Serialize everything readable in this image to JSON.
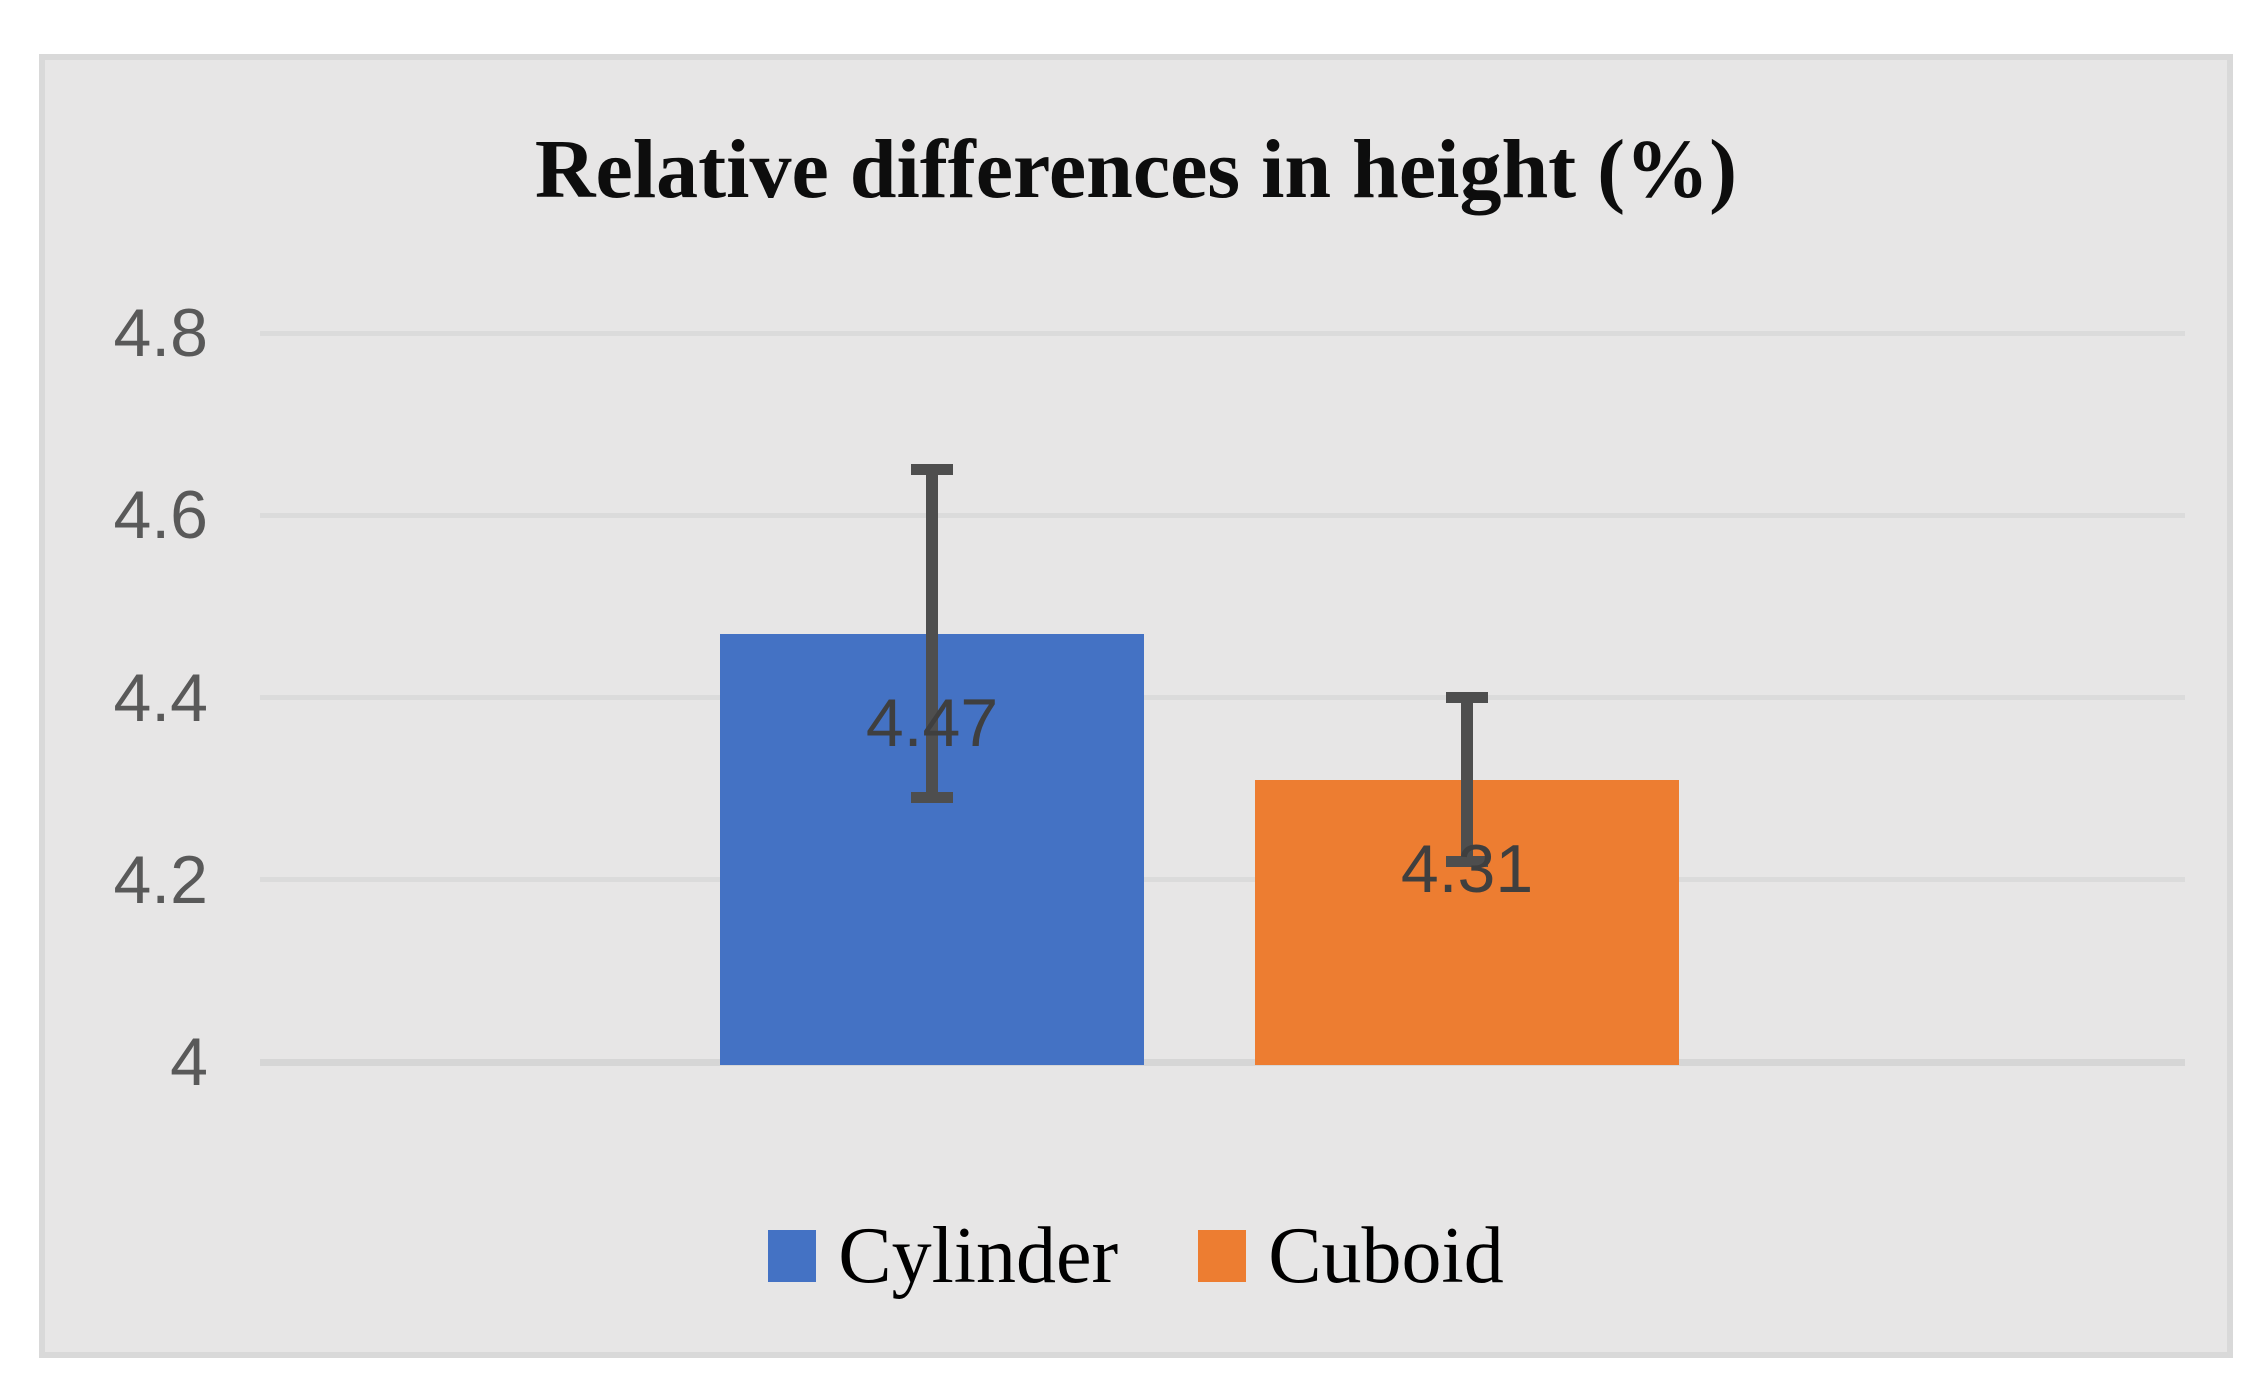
{
  "page": {
    "background": "#FFFFFF"
  },
  "chart": {
    "panel_background": "#E7E6E6",
    "panel_border_color": "#D9D9D9",
    "gridline_color": "#DBDBDB",
    "axis_base_line_color": "#D6D6D6",
    "tick_label_color": "#595959",
    "data_label_color": "#3F3F3F",
    "error_bar_color": "#4E4E4E",
    "title_color": "#0D0D0D",
    "legend_text_color": "#000000"
  },
  "chart_data": {
    "type": "bar",
    "title": "Relative differences in height (%)",
    "categories": [
      ""
    ],
    "series": [
      {
        "name": "Cylinder",
        "value": 4.47,
        "values": [
          4.47
        ],
        "data_label": "4.47",
        "color": "#4472C4",
        "error_low": 4.29,
        "error_high": 4.65
      },
      {
        "name": "Cuboid",
        "value": 4.31,
        "values": [
          4.31
        ],
        "data_label": "4.31",
        "color": "#ED7D31",
        "error_low": 4.22,
        "error_high": 4.4
      }
    ],
    "xlabel": "",
    "ylabel": "",
    "ylim": [
      4,
      4.8
    ],
    "yticks": [
      4,
      4.2,
      4.4,
      4.6,
      4.8
    ],
    "ytick_labels": [
      "4",
      "4.2",
      "4.4",
      "4.6",
      "4.8"
    ],
    "grid": true,
    "error_bars": true,
    "legend_position": "bottom"
  }
}
